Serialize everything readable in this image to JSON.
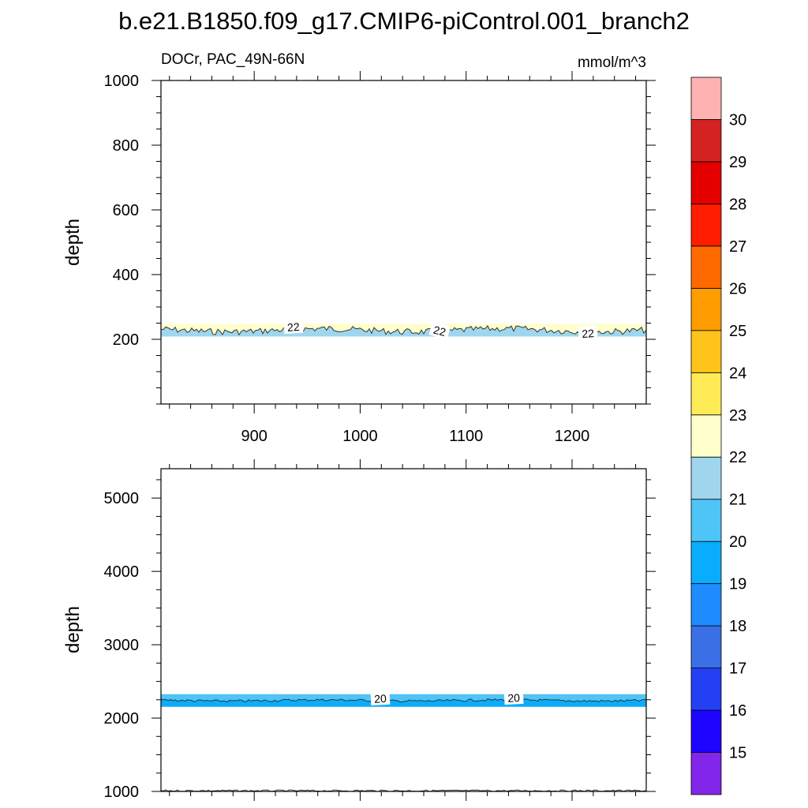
{
  "title": "b.e21.B1850.f09_g17.CMIP6-piControl.001_branch2",
  "chart_data": [
    {
      "type": "heatmap",
      "panel": "upper",
      "left_label": "DOCr, PAC_49N-66N",
      "right_label": "mmol/m^3",
      "xlabel": "",
      "ylabel": "depth",
      "xlim": [
        812,
        1270
      ],
      "ylim": [
        1000,
        0
      ],
      "xticks": [
        900,
        1000,
        1100,
        1200
      ],
      "xtick_labels": [
        "900",
        "1000",
        "1100",
        "1200"
      ],
      "yticks": [
        200,
        400,
        600,
        800,
        1000
      ],
      "ytick_labels": [
        "200",
        "400",
        "600",
        "800",
        "1000"
      ],
      "contour_boundary_depth": 228,
      "regions": [
        {
          "from_depth": 0,
          "to_depth": 228,
          "color": "#ffffcc",
          "range": "22-23"
        },
        {
          "from_depth": 228,
          "to_depth": 1000,
          "color": "#9fd6ee",
          "range": "21-22"
        }
      ],
      "contour_labels": [
        {
          "x": 937,
          "depth": 238,
          "text": "22",
          "angle": -4
        },
        {
          "x": 1075,
          "depth": 226,
          "text": "22",
          "angle": 14
        },
        {
          "x": 1215,
          "depth": 218,
          "text": "22",
          "angle": -4
        }
      ]
    },
    {
      "type": "heatmap",
      "panel": "lower",
      "xlabel": "",
      "ylabel": "depth",
      "xlim": [
        812,
        1270
      ],
      "ylim": [
        5400,
        1000
      ],
      "xticks": [
        900,
        1000,
        1100,
        1200
      ],
      "yticks": [
        1000,
        2000,
        3000,
        4000,
        5000
      ],
      "ytick_labels": [
        "1000",
        "2000",
        "3000",
        "4000",
        "5000"
      ],
      "contour_boundary_depth": 2240,
      "regions": [
        {
          "from_depth": 1000,
          "to_depth": 1010,
          "color": "#9fd6ee",
          "range": "21-22"
        },
        {
          "from_depth": 1010,
          "to_depth": 2240,
          "color": "#4ec4f7",
          "range": "20-21"
        },
        {
          "from_depth": 2240,
          "to_depth": 5400,
          "color": "#0aadfd",
          "range": "19-20"
        }
      ],
      "contour_labels": [
        {
          "x": 1019,
          "depth": 2265,
          "text": "20",
          "angle": -3
        },
        {
          "x": 1145,
          "depth": 2275,
          "text": "20",
          "angle": -3
        }
      ]
    }
  ],
  "colorbar": {
    "labels": [
      "15",
      "16",
      "17",
      "18",
      "19",
      "20",
      "21",
      "22",
      "23",
      "24",
      "25",
      "26",
      "27",
      "28",
      "29",
      "30"
    ],
    "colors": [
      "#8226ea",
      "#1d05ff",
      "#2340f2",
      "#3a6fe6",
      "#1e8cff",
      "#0aadfd",
      "#4ec4f7",
      "#9fd6ee",
      "#ffffcc",
      "#ffeb55",
      "#ffc41a",
      "#ff9c00",
      "#ff6a00",
      "#ff1d00",
      "#e50000",
      "#d42121",
      "#ffb2b2"
    ]
  }
}
